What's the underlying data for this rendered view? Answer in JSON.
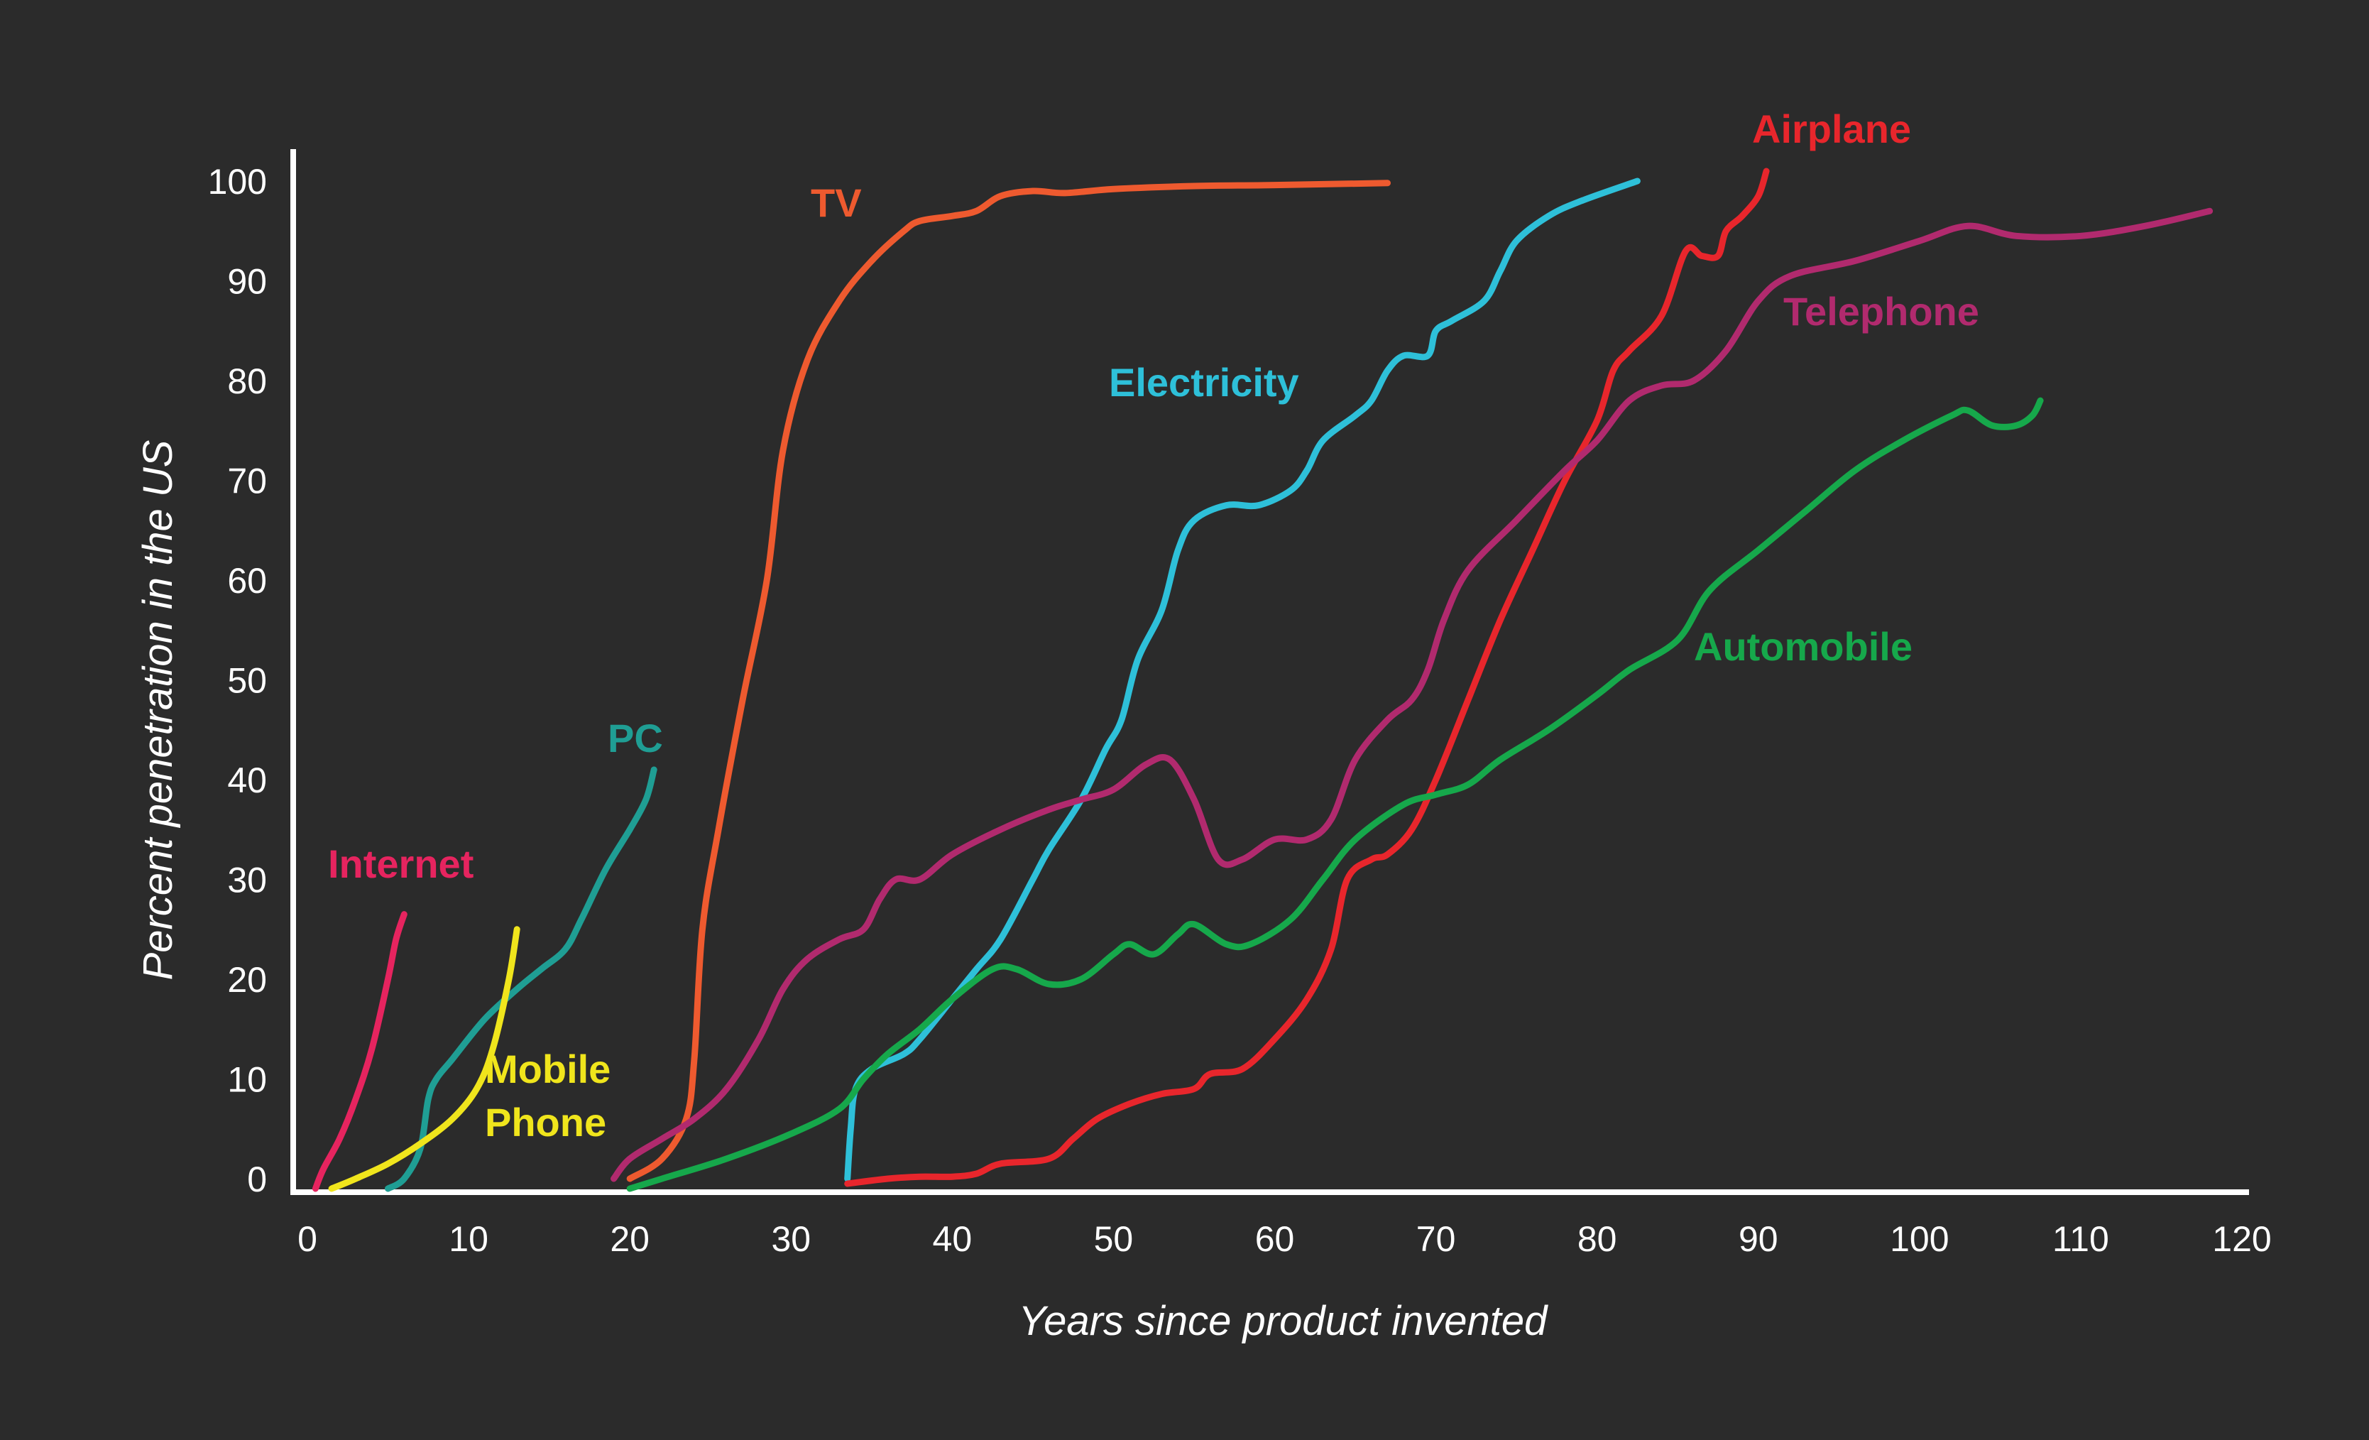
{
  "chart_data": {
    "type": "line",
    "title": "",
    "xlabel": "Years since product invented",
    "ylabel": "Percent penetration in the US",
    "xlim": [
      0,
      120
    ],
    "ylim": [
      0,
      100
    ],
    "xticks": [
      0,
      10,
      20,
      30,
      40,
      50,
      60,
      70,
      80,
      90,
      100,
      110,
      120
    ],
    "yticks": [
      0,
      10,
      20,
      30,
      40,
      50,
      60,
      70,
      80,
      90,
      100
    ],
    "grid": false,
    "background": "#2b2b2b",
    "axis_color": "#ffffff",
    "series": [
      {
        "name": "TV",
        "color": "#ee5a2f",
        "points": [
          [
            20,
            0
          ],
          [
            22,
            2
          ],
          [
            23.5,
            6
          ],
          [
            24,
            12
          ],
          [
            24.5,
            25
          ],
          [
            25.5,
            35
          ],
          [
            27,
            48
          ],
          [
            28.5,
            60
          ],
          [
            29.5,
            73
          ],
          [
            31,
            82
          ],
          [
            33,
            88
          ],
          [
            35,
            92
          ],
          [
            37,
            95
          ],
          [
            38,
            96
          ],
          [
            40,
            96.5
          ],
          [
            41.5,
            97
          ],
          [
            43,
            98.5
          ],
          [
            45,
            99
          ],
          [
            47,
            98.8
          ],
          [
            50,
            99.2
          ],
          [
            55,
            99.5
          ],
          [
            60,
            99.6
          ],
          [
            67,
            99.8
          ]
        ]
      },
      {
        "name": "Electricity",
        "color": "#2ec0d9",
        "points": [
          [
            33.5,
            0
          ],
          [
            33.7,
            5
          ],
          [
            34,
            9
          ],
          [
            35,
            11
          ],
          [
            37,
            12.5
          ],
          [
            38,
            14
          ],
          [
            40,
            18
          ],
          [
            41.5,
            21
          ],
          [
            43,
            24
          ],
          [
            45,
            30
          ],
          [
            46,
            33
          ],
          [
            48,
            38
          ],
          [
            49.5,
            43
          ],
          [
            50.5,
            46
          ],
          [
            51.5,
            52
          ],
          [
            53,
            57
          ],
          [
            54,
            63
          ],
          [
            55,
            66
          ],
          [
            57,
            67.5
          ],
          [
            59,
            67.5
          ],
          [
            61,
            69
          ],
          [
            62,
            71
          ],
          [
            63,
            74
          ],
          [
            65,
            76.5
          ],
          [
            66,
            78
          ],
          [
            67,
            81
          ],
          [
            68,
            82.5
          ],
          [
            69.5,
            82.5
          ],
          [
            70,
            85
          ],
          [
            71,
            86
          ],
          [
            73,
            88
          ],
          [
            74,
            91
          ],
          [
            75,
            94
          ],
          [
            77,
            96.5
          ],
          [
            79,
            98
          ],
          [
            82.5,
            100
          ]
        ]
      },
      {
        "name": "Airplane",
        "color": "#e8262c",
        "points": [
          [
            33.5,
            -0.5
          ],
          [
            36,
            0
          ],
          [
            38,
            0.2
          ],
          [
            40,
            0.2
          ],
          [
            41.5,
            0.5
          ],
          [
            43,
            1.5
          ],
          [
            46,
            2
          ],
          [
            47.5,
            4
          ],
          [
            49,
            6
          ],
          [
            51,
            7.5
          ],
          [
            53,
            8.5
          ],
          [
            55,
            9
          ],
          [
            56,
            10.5
          ],
          [
            58,
            11
          ],
          [
            60,
            14
          ],
          [
            62,
            18
          ],
          [
            63.5,
            23
          ],
          [
            64.5,
            30
          ],
          [
            66,
            32
          ],
          [
            67,
            32.5
          ],
          [
            68.5,
            35
          ],
          [
            70,
            40
          ],
          [
            72,
            48
          ],
          [
            74,
            56
          ],
          [
            76,
            63
          ],
          [
            78,
            70
          ],
          [
            80,
            76
          ],
          [
            81,
            81
          ],
          [
            82,
            83
          ],
          [
            84,
            86.5
          ],
          [
            85.5,
            93
          ],
          [
            86.5,
            92.5
          ],
          [
            87.5,
            92.5
          ],
          [
            88,
            95
          ],
          [
            89,
            96.5
          ],
          [
            90,
            98.5
          ],
          [
            90.5,
            101
          ]
        ]
      },
      {
        "name": "Telephone",
        "color": "#b12a6e",
        "points": [
          [
            19,
            0
          ],
          [
            20,
            2
          ],
          [
            22,
            4
          ],
          [
            24,
            6
          ],
          [
            26,
            9
          ],
          [
            28,
            14
          ],
          [
            29.5,
            19
          ],
          [
            31,
            22
          ],
          [
            33,
            24
          ],
          [
            34.5,
            25
          ],
          [
            35.5,
            28
          ],
          [
            36.5,
            30
          ],
          [
            38,
            30
          ],
          [
            40,
            32.5
          ],
          [
            43,
            35
          ],
          [
            46,
            37
          ],
          [
            48,
            38
          ],
          [
            50,
            39
          ],
          [
            52,
            41.5
          ],
          [
            53.5,
            42
          ],
          [
            55,
            38
          ],
          [
            56.5,
            32
          ],
          [
            58,
            32
          ],
          [
            60,
            34
          ],
          [
            62,
            34
          ],
          [
            63.5,
            36
          ],
          [
            65,
            42
          ],
          [
            67,
            46
          ],
          [
            68.5,
            48
          ],
          [
            69.5,
            51
          ],
          [
            70.5,
            56
          ],
          [
            72,
            61
          ],
          [
            75,
            66
          ],
          [
            78,
            71
          ],
          [
            80,
            74
          ],
          [
            82,
            78
          ],
          [
            84,
            79.5
          ],
          [
            86,
            80
          ],
          [
            88,
            83
          ],
          [
            90,
            88
          ],
          [
            92,
            90.5
          ],
          [
            96,
            92
          ],
          [
            100,
            94
          ],
          [
            103,
            95.5
          ],
          [
            106,
            94.5
          ],
          [
            110,
            94.5
          ],
          [
            114,
            95.5
          ],
          [
            118,
            97
          ]
        ]
      },
      {
        "name": "Automobile",
        "color": "#16a84b",
        "points": [
          [
            20,
            -1
          ],
          [
            22,
            0
          ],
          [
            26,
            2
          ],
          [
            30,
            4.5
          ],
          [
            33,
            7
          ],
          [
            34.5,
            10
          ],
          [
            36,
            12.5
          ],
          [
            38,
            15
          ],
          [
            40,
            18
          ],
          [
            42.5,
            21
          ],
          [
            44,
            21
          ],
          [
            46,
            19.5
          ],
          [
            48,
            20
          ],
          [
            50,
            22.5
          ],
          [
            51,
            23.5
          ],
          [
            52.5,
            22.5
          ],
          [
            54,
            24.5
          ],
          [
            55,
            25.5
          ],
          [
            57,
            23.5
          ],
          [
            58.5,
            23.5
          ],
          [
            61,
            26
          ],
          [
            63,
            30
          ],
          [
            65,
            34
          ],
          [
            68,
            37.5
          ],
          [
            70,
            38.5
          ],
          [
            72,
            39.5
          ],
          [
            74,
            42
          ],
          [
            77,
            45
          ],
          [
            80,
            48.5
          ],
          [
            82,
            51
          ],
          [
            85,
            54
          ],
          [
            87,
            59
          ],
          [
            90,
            63
          ],
          [
            93,
            67
          ],
          [
            96,
            71
          ],
          [
            99,
            74
          ],
          [
            102,
            76.5
          ],
          [
            103,
            77
          ],
          [
            104.5,
            75.5
          ],
          [
            106,
            75.5
          ],
          [
            107,
            76.5
          ],
          [
            107.5,
            78
          ]
        ]
      },
      {
        "name": "PC",
        "color": "#1f9e94",
        "points": [
          [
            5,
            -1
          ],
          [
            6,
            0
          ],
          [
            7,
            3
          ],
          [
            7.5,
            8
          ],
          [
            8,
            10
          ],
          [
            9,
            12
          ],
          [
            11,
            16
          ],
          [
            13,
            19
          ],
          [
            14.5,
            21
          ],
          [
            16,
            23
          ],
          [
            17,
            26
          ],
          [
            18.5,
            31
          ],
          [
            20,
            35
          ],
          [
            21,
            38
          ],
          [
            21.5,
            41
          ]
        ]
      },
      {
        "name": "Internet",
        "color": "#e6245f",
        "points": [
          [
            0.5,
            -1
          ],
          [
            1,
            1
          ],
          [
            2,
            4
          ],
          [
            3,
            8
          ],
          [
            4,
            13
          ],
          [
            5,
            20
          ],
          [
            5.5,
            24
          ],
          [
            6,
            26.5
          ]
        ]
      },
      {
        "name": "Mobile Phone",
        "color": "#f0e51c",
        "points": [
          [
            1.5,
            -1
          ],
          [
            3,
            0
          ],
          [
            5,
            1.5
          ],
          [
            7,
            3.5
          ],
          [
            9,
            6
          ],
          [
            10.5,
            9
          ],
          [
            11.5,
            13
          ],
          [
            12.5,
            20
          ],
          [
            13,
            25
          ]
        ]
      }
    ],
    "annotations": [
      {
        "text": "TV",
        "color": "#ee5a2f"
      },
      {
        "text": "Electricity",
        "color": "#2ec0d9"
      },
      {
        "text": "Airplane",
        "color": "#e8262c"
      },
      {
        "text": "Telephone",
        "color": "#b12a6e"
      },
      {
        "text": "Automobile",
        "color": "#16a84b"
      },
      {
        "text": "PC",
        "color": "#1f9e94"
      },
      {
        "text": "Internet",
        "color": "#e6245f"
      },
      {
        "text": "Mobile",
        "color": "#f0e51c"
      },
      {
        "text": "Phone",
        "color": "#f0e51c"
      }
    ]
  }
}
